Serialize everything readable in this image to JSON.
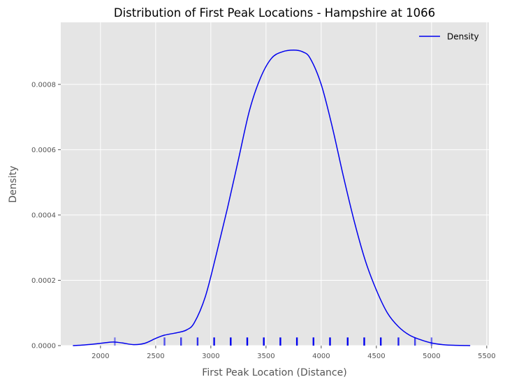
{
  "chart_data": {
    "type": "line",
    "title": "Distribution of First Peak Locations - Hampshire at 1066",
    "xlabel": "First Peak Location (Distance)",
    "ylabel": "Density",
    "xlim": [
      1640,
      5520
    ],
    "ylim": [
      0,
      0.00099
    ],
    "xticks": [
      2000,
      2500,
      3000,
      3500,
      4000,
      4500,
      5000,
      5500
    ],
    "yticks": [
      0.0,
      0.0002,
      0.0004,
      0.0006,
      0.0008
    ],
    "ytick_labels": [
      "0.0000",
      "0.0002",
      "0.0004",
      "0.0006",
      "0.0008"
    ],
    "grid": true,
    "legend_position": "top-right",
    "series": [
      {
        "name": "Density",
        "color": "#0000ee",
        "x": [
          1750,
          1850,
          1950,
          2050,
          2120,
          2200,
          2300,
          2400,
          2500,
          2580,
          2700,
          2780,
          2850,
          2950,
          3050,
          3150,
          3250,
          3350,
          3450,
          3550,
          3650,
          3750,
          3830,
          3900,
          4000,
          4100,
          4200,
          4300,
          4400,
          4500,
          4600,
          4700,
          4800,
          4900,
          5000,
          5100,
          5200,
          5350
        ],
        "y": [
          0.0,
          2e-06,
          5e-06,
          9e-06,
          1.1e-05,
          8e-06,
          3e-06,
          7e-06,
          2.2e-05,
          3.2e-05,
          4e-05,
          4.8e-05,
          7e-05,
          0.00015,
          0.00028,
          0.00042,
          0.00057,
          0.00072,
          0.00082,
          0.00088,
          0.0009,
          0.000905,
          0.0009,
          0.00088,
          0.0008,
          0.00067,
          0.00052,
          0.00038,
          0.00026,
          0.00017,
          0.0001,
          5.8e-05,
          3.2e-05,
          1.8e-05,
          8e-06,
          3e-06,
          1e-06,
          0.0
        ]
      }
    ],
    "rug": {
      "color": "#0000ee",
      "x": [
        2130,
        2580,
        2730,
        2880,
        3030,
        3180,
        3330,
        3480,
        3630,
        3780,
        3930,
        4080,
        4240,
        4390,
        4540,
        4700,
        4850,
        5000
      ],
      "alpha": [
        0.45,
        0.65,
        0.75,
        0.8,
        0.95,
        1,
        1,
        1,
        1,
        1,
        1,
        1,
        1,
        1,
        0.95,
        0.85,
        0.7,
        0.55
      ],
      "height_value": 2.5e-05
    }
  }
}
